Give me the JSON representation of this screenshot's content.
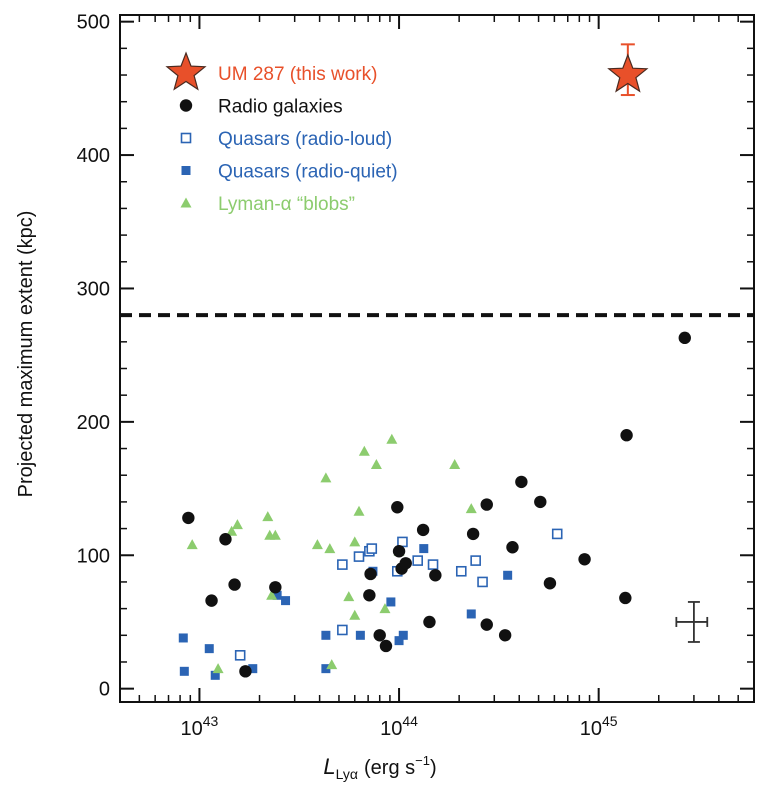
{
  "chart_data": {
    "type": "scatter",
    "xscale": "log",
    "xlim": [
      4e+42,
      6e+45
    ],
    "ylim": [
      -10,
      505
    ],
    "ylabel": "Projected maximum extent (kpc)",
    "xlabel_main": "L",
    "xlabel_sub": "Lyα",
    "xlabel_unit": "(erg s",
    "xlabel_exp": "−1",
    "xlabel_close": ")",
    "xticks": [
      {
        "value": 1e+43,
        "base": "10",
        "exp": "43"
      },
      {
        "value": 1e+44,
        "base": "10",
        "exp": "44"
      },
      {
        "value": 1e+45,
        "base": "10",
        "exp": "45"
      }
    ],
    "yticks": [
      0,
      100,
      200,
      300,
      400,
      500
    ],
    "yticks_labels": [
      "0",
      "100",
      "200",
      "300",
      "400",
      "500"
    ],
    "threshold_line": {
      "y": 280,
      "style": "dashed"
    },
    "legend_position": "top-left",
    "series": [
      {
        "name": "UM 287 (this work)",
        "marker": "star",
        "color": "#e8502a",
        "points": [
          {
            "x": 1.4e+45,
            "y": 460,
            "yerr_low": 445,
            "yerr_high": 483
          }
        ]
      },
      {
        "name": "Radio galaxies",
        "marker": "filled-circle",
        "color": "#111111",
        "points": [
          {
            "x": 8.8e+42,
            "y": 128
          },
          {
            "x": 1.15e+43,
            "y": 66
          },
          {
            "x": 1.35e+43,
            "y": 112
          },
          {
            "x": 1.5e+43,
            "y": 78
          },
          {
            "x": 1.7e+43,
            "y": 13
          },
          {
            "x": 2.4e+43,
            "y": 76
          },
          {
            "x": 7.2e+43,
            "y": 86
          },
          {
            "x": 7.1e+43,
            "y": 70
          },
          {
            "x": 8e+43,
            "y": 40
          },
          {
            "x": 8.6e+43,
            "y": 32
          },
          {
            "x": 9.8e+43,
            "y": 136
          },
          {
            "x": 1e+44,
            "y": 103
          },
          {
            "x": 1.03e+44,
            "y": 90
          },
          {
            "x": 1.08e+44,
            "y": 94
          },
          {
            "x": 1.32e+44,
            "y": 119
          },
          {
            "x": 1.42e+44,
            "y": 50
          },
          {
            "x": 1.52e+44,
            "y": 85
          },
          {
            "x": 2.35e+44,
            "y": 116
          },
          {
            "x": 2.75e+44,
            "y": 138
          },
          {
            "x": 2.75e+44,
            "y": 48
          },
          {
            "x": 3.4e+44,
            "y": 40
          },
          {
            "x": 3.7e+44,
            "y": 106
          },
          {
            "x": 4.1e+44,
            "y": 155
          },
          {
            "x": 5.1e+44,
            "y": 140
          },
          {
            "x": 5.7e+44,
            "y": 79
          },
          {
            "x": 8.5e+44,
            "y": 97
          },
          {
            "x": 1.38e+45,
            "y": 190
          },
          {
            "x": 1.36e+45,
            "y": 68
          },
          {
            "x": 2.7e+45,
            "y": 263
          }
        ]
      },
      {
        "name": "Quasars (radio-loud)",
        "marker": "open-square",
        "color": "#2b64b4",
        "points": [
          {
            "x": 1.6e+43,
            "y": 25
          },
          {
            "x": 5.2e+43,
            "y": 44
          },
          {
            "x": 5.2e+43,
            "y": 93
          },
          {
            "x": 6.3e+43,
            "y": 99
          },
          {
            "x": 7.1e+43,
            "y": 103
          },
          {
            "x": 7.3e+43,
            "y": 105
          },
          {
            "x": 9.8e+43,
            "y": 88
          },
          {
            "x": 1.04e+44,
            "y": 110
          },
          {
            "x": 1.24e+44,
            "y": 96
          },
          {
            "x": 1.48e+44,
            "y": 93
          },
          {
            "x": 2.05e+44,
            "y": 88
          },
          {
            "x": 2.42e+44,
            "y": 96
          },
          {
            "x": 2.62e+44,
            "y": 80
          },
          {
            "x": 6.2e+44,
            "y": 116
          }
        ]
      },
      {
        "name": "Quasars (radio-quiet)",
        "marker": "filled-square",
        "color": "#2b64b4",
        "points": [
          {
            "x": 8.3e+42,
            "y": 38
          },
          {
            "x": 8.4e+42,
            "y": 13
          },
          {
            "x": 1.12e+43,
            "y": 30
          },
          {
            "x": 1.2e+43,
            "y": 10
          },
          {
            "x": 1.85e+43,
            "y": 15
          },
          {
            "x": 2.45e+43,
            "y": 70
          },
          {
            "x": 2.7e+43,
            "y": 66
          },
          {
            "x": 4.3e+43,
            "y": 40
          },
          {
            "x": 4.3e+43,
            "y": 15
          },
          {
            "x": 6.4e+43,
            "y": 40
          },
          {
            "x": 7.4e+43,
            "y": 88
          },
          {
            "x": 9.1e+43,
            "y": 65
          },
          {
            "x": 1e+44,
            "y": 36
          },
          {
            "x": 1.05e+44,
            "y": 40
          },
          {
            "x": 1.33e+44,
            "y": 105
          },
          {
            "x": 2.3e+44,
            "y": 56
          },
          {
            "x": 3.5e+44,
            "y": 85
          }
        ]
      },
      {
        "name": "Lyman-α “blobs”",
        "marker": "filled-triangle",
        "color": "#8ccc6e",
        "points": [
          {
            "x": 9.2e+42,
            "y": 108
          },
          {
            "x": 1.24e+43,
            "y": 15
          },
          {
            "x": 1.45e+43,
            "y": 118
          },
          {
            "x": 1.55e+43,
            "y": 123
          },
          {
            "x": 2.2e+43,
            "y": 129
          },
          {
            "x": 2.25e+43,
            "y": 115
          },
          {
            "x": 2.4e+43,
            "y": 115
          },
          {
            "x": 2.3e+43,
            "y": 70
          },
          {
            "x": 3.9e+43,
            "y": 108
          },
          {
            "x": 4.3e+43,
            "y": 158
          },
          {
            "x": 4.5e+43,
            "y": 105
          },
          {
            "x": 4.6e+43,
            "y": 18
          },
          {
            "x": 5.6e+43,
            "y": 69
          },
          {
            "x": 6e+43,
            "y": 55
          },
          {
            "x": 6e+43,
            "y": 110
          },
          {
            "x": 6.3e+43,
            "y": 133
          },
          {
            "x": 6.7e+43,
            "y": 178
          },
          {
            "x": 7.7e+43,
            "y": 168
          },
          {
            "x": 8.5e+43,
            "y": 60
          },
          {
            "x": 9.2e+43,
            "y": 187
          },
          {
            "x": 1e+44,
            "y": 103
          },
          {
            "x": 1.9e+44,
            "y": 168
          },
          {
            "x": 2.3e+44,
            "y": 135
          }
        ]
      }
    ],
    "typical_error_bar": {
      "x": 3e+45,
      "y": 50,
      "y_low": 35,
      "y_high": 65,
      "x_low": 2.45e+45,
      "x_high": 3.5e+45
    }
  }
}
